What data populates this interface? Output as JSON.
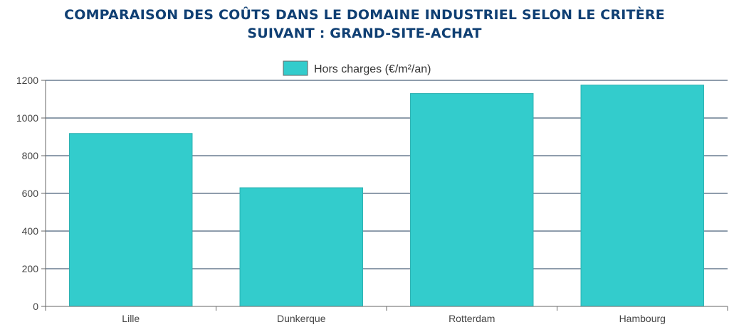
{
  "title_lines": [
    "COMPARAISON DES COÛTS DANS LE DOMAINE INDUSTRIEL SELON LE CRITÈRE",
    "SUIVANT : GRAND-SITE-ACHAT"
  ],
  "chart_data": {
    "type": "bar",
    "title": "COMPARAISON DES COÛTS DANS LE DOMAINE INDUSTRIEL SELON LE CRITÈRE SUIVANT : GRAND-SITE-ACHAT",
    "categories": [
      "Lille",
      "Dunkerque",
      "Rotterdam",
      "Hambourg"
    ],
    "series": [
      {
        "name": "Hors charges (€/m²/an)",
        "values": [
          918,
          630,
          1130,
          1175
        ],
        "color": "#33cccc"
      }
    ],
    "ylim": [
      0,
      1200
    ],
    "yticks": [
      0,
      200,
      400,
      600,
      800,
      1000,
      1200
    ],
    "grid": true,
    "legend_position": "top-center",
    "colors": {
      "bar": "#33cccc",
      "bar_edge": "#2ab0b0",
      "grid": "#1f3b5a",
      "axis": "#666666"
    }
  }
}
